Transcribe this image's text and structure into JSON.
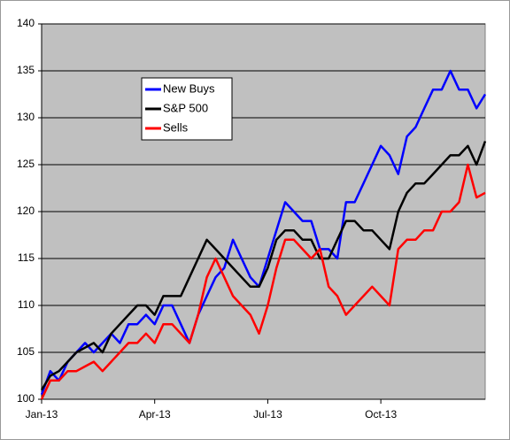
{
  "chart_data": {
    "type": "line",
    "categories": [
      "Jan-13",
      null,
      null,
      null,
      null,
      null,
      null,
      null,
      null,
      null,
      null,
      null,
      null,
      "Apr-13",
      null,
      null,
      null,
      null,
      null,
      null,
      null,
      null,
      null,
      null,
      null,
      null,
      "Jul-13",
      null,
      null,
      null,
      null,
      null,
      null,
      null,
      null,
      null,
      null,
      null,
      null,
      "Oct-13",
      null,
      null,
      null,
      null,
      null,
      null,
      null,
      null,
      null,
      null,
      null,
      null
    ],
    "series": [
      {
        "name": "New Buys",
        "color": "#0000ff",
        "values": [
          100.5,
          103,
          102,
          104,
          105,
          106,
          105,
          106,
          107,
          106,
          108,
          108,
          109,
          108,
          110,
          110,
          108,
          106,
          109,
          111,
          113,
          114,
          117,
          115,
          113,
          112,
          115,
          118,
          121,
          120,
          119,
          119,
          116,
          116,
          115,
          121,
          121,
          123,
          125,
          127,
          126,
          124,
          128,
          129,
          131,
          133,
          133,
          135,
          133,
          133,
          131,
          132.5
        ]
      },
      {
        "name": "S&P 500",
        "color": "#000000",
        "values": [
          101,
          102.5,
          103,
          104,
          105,
          105.5,
          106,
          105,
          107,
          108,
          109,
          110,
          110,
          109,
          111,
          111,
          111,
          113,
          115,
          117,
          116,
          115,
          114,
          113,
          112,
          112,
          114,
          117,
          118,
          118,
          117,
          117,
          115,
          115,
          117,
          119,
          119,
          118,
          118,
          117,
          116,
          120,
          122,
          123,
          123,
          124,
          125,
          126,
          126,
          127,
          125,
          127.5
        ]
      },
      {
        "name": "Sells",
        "color": "#ff0000",
        "values": [
          100,
          102,
          102,
          103,
          103,
          103.5,
          104,
          103,
          104,
          105,
          106,
          106,
          107,
          106,
          108,
          108,
          107,
          106,
          109,
          113,
          115,
          113,
          111,
          110,
          109,
          107,
          110,
          114,
          117,
          117,
          116,
          115,
          116,
          112,
          111,
          109,
          110,
          111,
          112,
          111,
          110,
          116,
          117,
          117,
          118,
          118,
          120,
          120,
          121,
          125,
          121.5,
          122
        ]
      }
    ],
    "ylim": [
      100,
      140
    ],
    "yticks": [
      100,
      105,
      110,
      115,
      120,
      125,
      130,
      135,
      140
    ],
    "grid": true,
    "legend": "upper left",
    "background": "#c0c0c0"
  }
}
